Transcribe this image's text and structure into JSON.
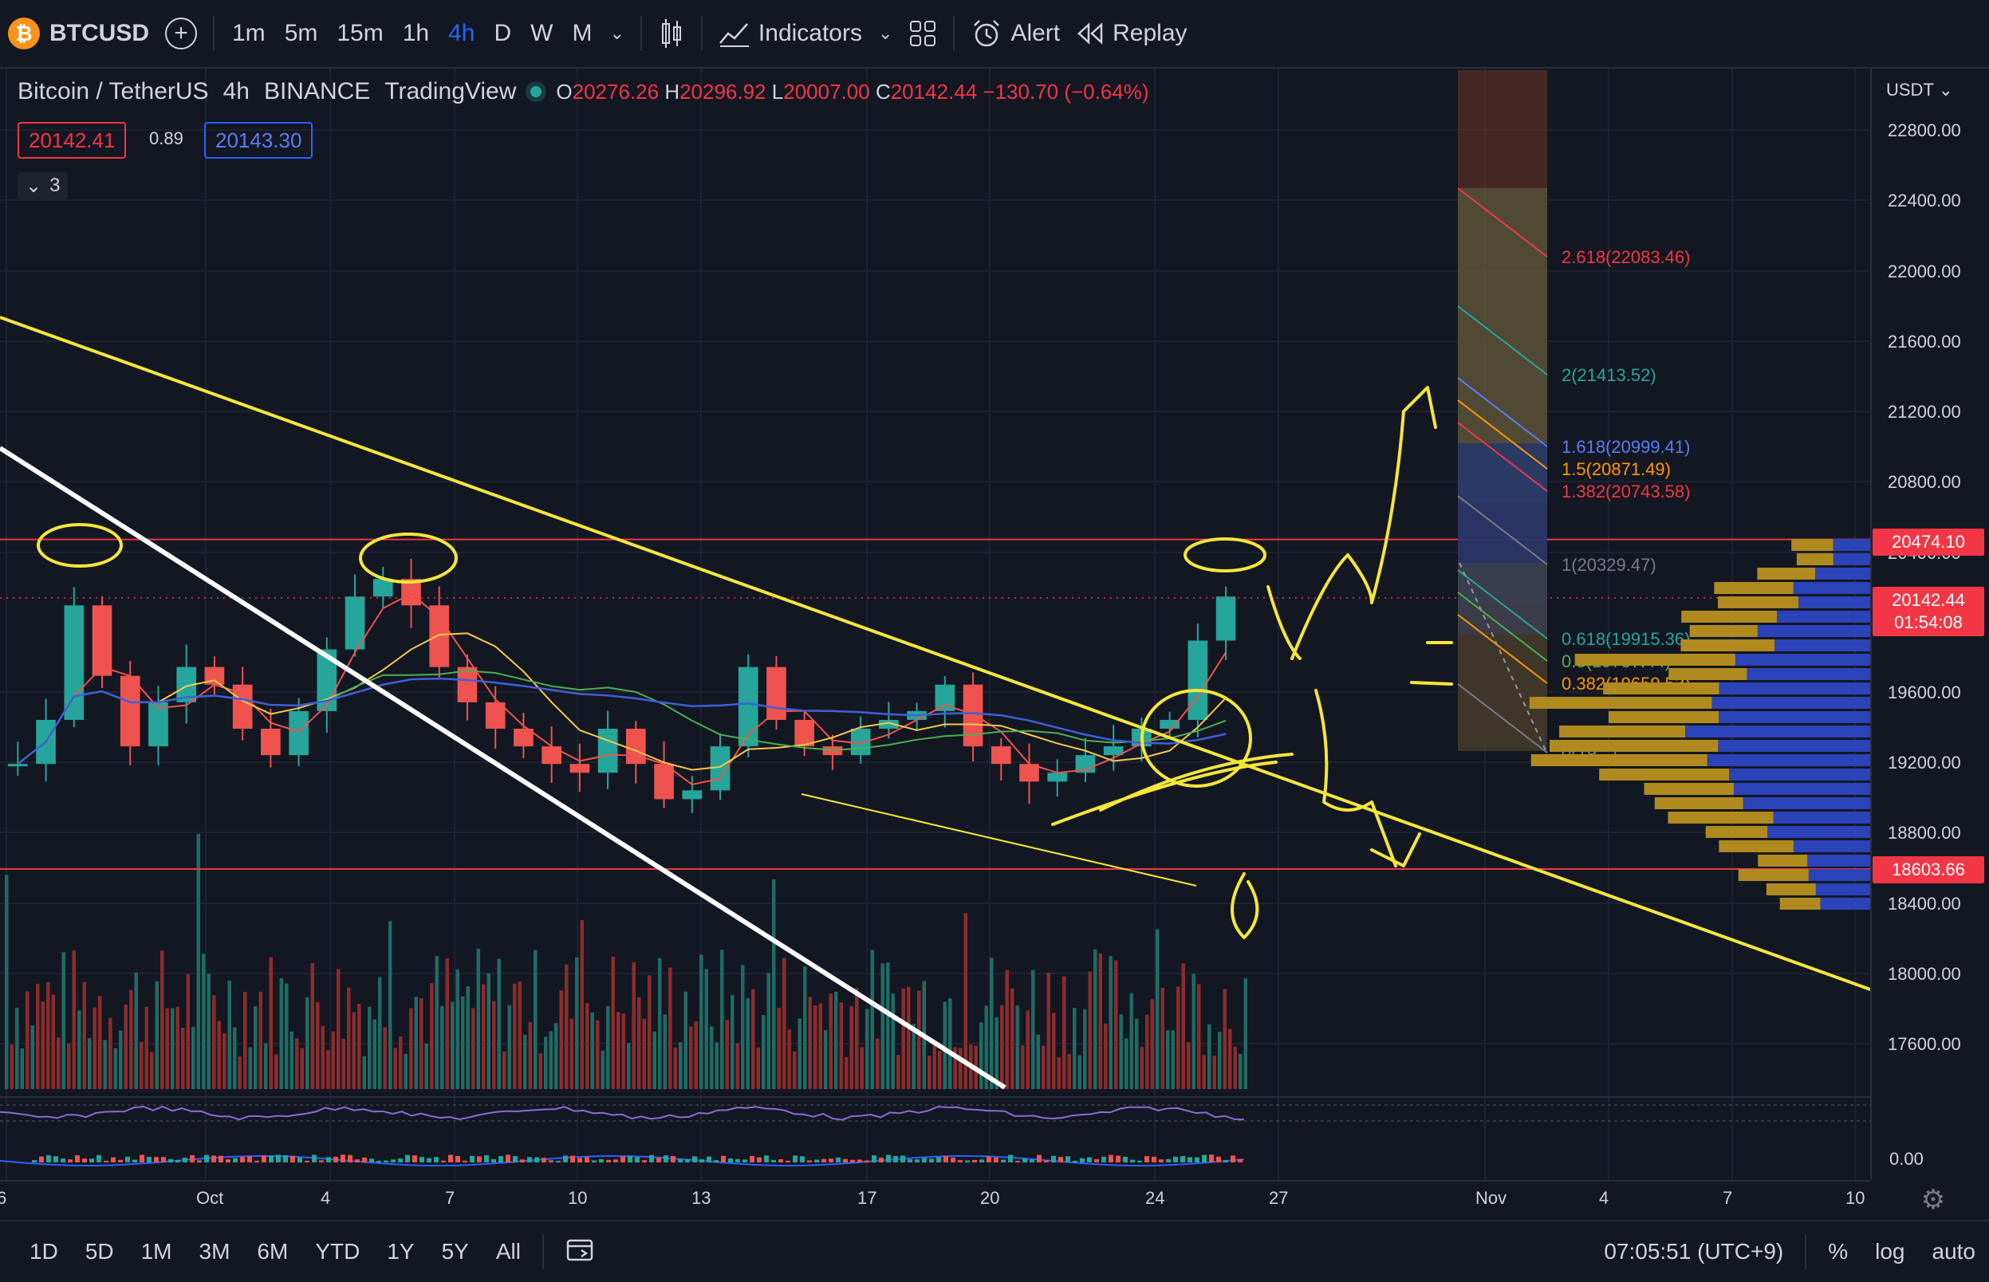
{
  "toolbar": {
    "symbol": "BTCUSD",
    "timeframes": [
      "1m",
      "5m",
      "15m",
      "1h",
      "4h",
      "D",
      "W",
      "M"
    ],
    "active_timeframe": "4h",
    "indicators_label": "Indicators",
    "alert_label": "Alert",
    "replay_label": "Replay"
  },
  "legend": {
    "pair": "Bitcoin / TetherUS",
    "interval": "4h",
    "exchange": "BINANCE",
    "source": "TradingView",
    "open_key": "O",
    "open": "20276.26",
    "high_key": "H",
    "high": "20296.92",
    "low_key": "L",
    "low": "20007.00",
    "close_key": "C",
    "close": "20142.44",
    "change": "−130.70 (−0.64%)",
    "bid": "20142.41",
    "spread": "0.89",
    "ask": "20143.30",
    "indicator_count": "3"
  },
  "colors": {
    "background": "#131722",
    "up": "#26a69a",
    "down": "#ef5350",
    "annotation": "#f5e63a",
    "trendline_white": "#ffffff",
    "hline": "#f23645"
  },
  "price_axis": {
    "currency": "USDT",
    "ticks": [
      "22800.00",
      "22400.00",
      "22000.00",
      "21600.00",
      "21200.00",
      "20800.00",
      "20400.00",
      "19600.00",
      "19200.00",
      "18800.00",
      "18400.00",
      "18000.00",
      "17600.00"
    ],
    "osc_tick": "0.00",
    "tag_high": "20474.10",
    "tag_last": "20142.44",
    "tag_countdown": "01:54:08",
    "tag_low": "18603.66"
  },
  "time_axis": {
    "labels": [
      "6",
      "Oct",
      "4",
      "7",
      "10",
      "13",
      "17",
      "20",
      "24",
      "27",
      "Nov",
      "4",
      "7",
      "10"
    ]
  },
  "fib": {
    "levels": [
      {
        "label": "2.618(22083.46)",
        "color": "#f23645"
      },
      {
        "label": "2(21413.52)",
        "color": "#26a69a"
      },
      {
        "label": "1.618(20999.41)",
        "color": "#5b7cf5"
      },
      {
        "label": "1.5(20871.49)",
        "color": "#ff9800"
      },
      {
        "label": "1.382(20743.58)",
        "color": "#f23645"
      },
      {
        "label": "1(20329.47)",
        "color": "#787b86"
      },
      {
        "label": "0.618(19915.36)",
        "color": "#26a69a"
      },
      {
        "label": "0.5(19787.44)",
        "color": "#4caf50"
      },
      {
        "label": "0.382(19659.53)",
        "color": "#ff9800"
      },
      {
        "label": "0(19...)",
        "color": "#787b86"
      }
    ]
  },
  "bottombar": {
    "ranges": [
      "1D",
      "5D",
      "1M",
      "3M",
      "6M",
      "YTD",
      "1Y",
      "5Y",
      "All"
    ],
    "clock": "07:05:51 (UTC+9)",
    "percent": "%",
    "log": "log",
    "auto": "auto"
  },
  "chart_data": {
    "type": "candlestick",
    "title": "Bitcoin / TetherUS",
    "x_labels": [
      "6",
      "Oct",
      "4",
      "7",
      "10",
      "13",
      "17",
      "20",
      "24",
      "27"
    ],
    "price_range": [
      17400,
      22900
    ],
    "close_series": [
      19200,
      19450,
      20100,
      19700,
      19300,
      19550,
      19750,
      19650,
      19400,
      19250,
      19500,
      19850,
      20150,
      20250,
      20100,
      19750,
      19550,
      19400,
      19300,
      19200,
      19150,
      19400,
      19200,
      19000,
      19050,
      19300,
      19750,
      19450,
      19300,
      19250,
      19400,
      19450,
      19500,
      19650,
      19300,
      19200,
      19100,
      19150,
      19250,
      19300,
      19400,
      19450,
      19900,
      20150
    ],
    "horizontal_levels": [
      20474.1,
      18603.66
    ],
    "last_price": 20142.44
  }
}
